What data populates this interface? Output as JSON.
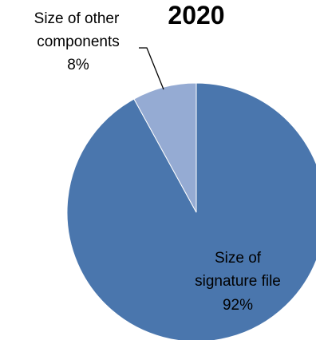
{
  "chart_data": {
    "type": "pie",
    "title": "2020",
    "slices": [
      {
        "label_lines": [
          "Size of",
          "signature file"
        ],
        "value": 92,
        "value_label": "92%",
        "color": "#4a76ad"
      },
      {
        "label_lines": [
          "Size of other",
          "components"
        ],
        "value": 8,
        "value_label": "8%",
        "color": "#95abd3"
      }
    ],
    "start_angle_deg": 0,
    "direction": "clockwise",
    "legend": "none"
  }
}
